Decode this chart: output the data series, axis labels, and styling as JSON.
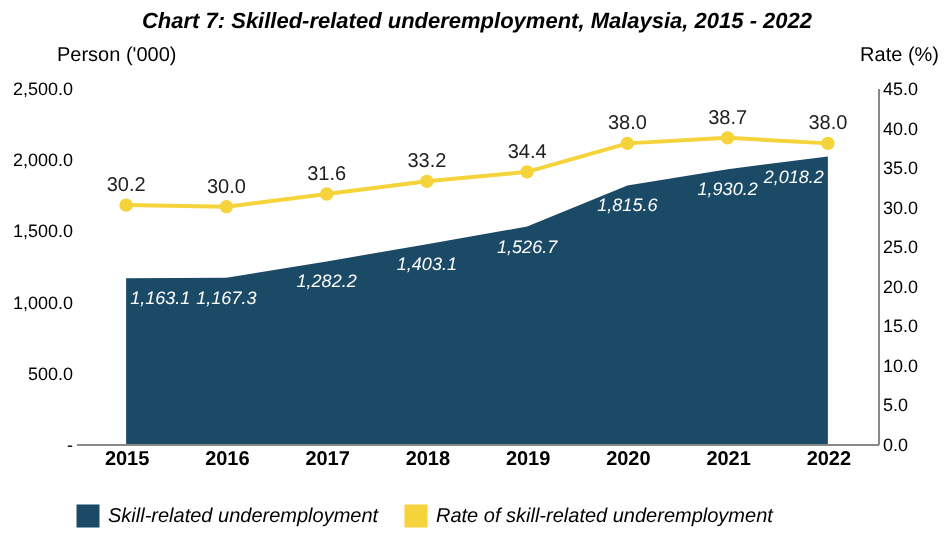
{
  "chart_data": {
    "type": "area",
    "title": "Chart 7: Skilled-related underemployment, Malaysia, 2015 - 2022",
    "ylabel": "Person ('000)",
    "y2label": "Rate (%)",
    "categories": [
      "2015",
      "2016",
      "2017",
      "2018",
      "2019",
      "2020",
      "2021",
      "2022"
    ],
    "series": [
      {
        "name": "Skill-related underemployment",
        "color": "#1b4a66",
        "values": [
          1163.1,
          1167.3,
          1282.2,
          1403.1,
          1526.7,
          1815.6,
          1930.2,
          2018.2
        ],
        "value_labels": [
          "1,163.1",
          "1,167.3",
          "1,282.2",
          "1,403.1",
          "1,526.7",
          "1,815.6",
          "1,930.2",
          "2,018.2"
        ]
      },
      {
        "name": "Rate of skill-related underemployment",
        "type": "line",
        "axis": "y2",
        "color": "#f5d33a",
        "values": [
          30.2,
          30.0,
          31.6,
          33.2,
          34.4,
          38.0,
          38.7,
          38.0
        ],
        "value_labels": [
          "30.2",
          "30.0",
          "31.6",
          "33.2",
          "34.4",
          "38.0",
          "38.7",
          "38.0"
        ],
        "marker": "circle"
      }
    ],
    "ylim": [
      0,
      2500
    ],
    "yticks": [
      {
        "value": 0,
        "label": "-"
      },
      {
        "value": 500,
        "label": "500.0"
      },
      {
        "value": 1000,
        "label": "1,000.0"
      },
      {
        "value": 1500,
        "label": "1,500.0"
      },
      {
        "value": 2000,
        "label": "2,000.0"
      },
      {
        "value": 2500,
        "label": "2,500.0"
      }
    ],
    "y2lim": [
      0,
      45
    ],
    "y2ticks": [
      {
        "value": 0,
        "label": "0.0"
      },
      {
        "value": 5,
        "label": "5.0"
      },
      {
        "value": 10,
        "label": "10.0"
      },
      {
        "value": 15,
        "label": "15.0"
      },
      {
        "value": 20,
        "label": "20.0"
      },
      {
        "value": 25,
        "label": "25.0"
      },
      {
        "value": 30,
        "label": "30.0"
      },
      {
        "value": 35,
        "label": "35.0"
      },
      {
        "value": 40,
        "label": "40.0"
      },
      {
        "value": 45,
        "label": "45.0"
      }
    ],
    "legend": "bottom",
    "grid": false
  }
}
